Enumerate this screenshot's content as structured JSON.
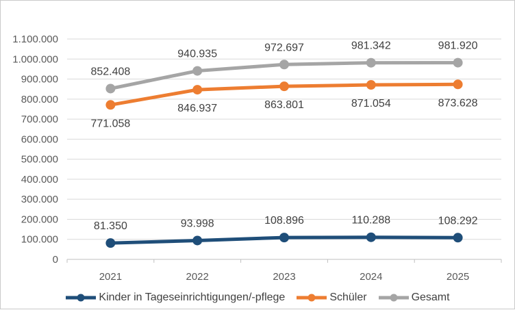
{
  "chart_data": {
    "type": "line",
    "categories": [
      "2021",
      "2022",
      "2023",
      "2024",
      "2025"
    ],
    "series": [
      {
        "name": "Kinder in Tageseinrichtigungen/-pflege",
        "color": "#1F4E79",
        "values": [
          81350,
          93998,
          108896,
          110288,
          108292
        ],
        "data_labels": [
          "81.350",
          "93.998",
          "108.896",
          "110.288",
          "108.292"
        ],
        "label_position": "above"
      },
      {
        "name": "Schüler",
        "color": "#ED7D31",
        "values": [
          771058,
          846937,
          863801,
          871054,
          873628
        ],
        "data_labels": [
          "771.058",
          "846.937",
          "863.801",
          "871.054",
          "873.628"
        ],
        "label_position": "below"
      },
      {
        "name": "Gesamt",
        "color": "#A5A5A5",
        "values": [
          852408,
          940935,
          972697,
          981342,
          981920
        ],
        "data_labels": [
          "852.408",
          "940.935",
          "972.697",
          "981.342",
          "981.920"
        ],
        "label_position": "above"
      }
    ],
    "ylim": [
      0,
      1100000
    ],
    "y_tick_labels": [
      "0",
      "100.000",
      "200.000",
      "300.000",
      "400.000",
      "500.000",
      "600.000",
      "700.000",
      "800.000",
      "900.000",
      "1.000.000",
      "1.100.000"
    ],
    "grid": true,
    "legend_position": "bottom"
  },
  "colors": {
    "grid_line": "#D9D9D9",
    "axis_line": "#BFBFBF",
    "axis_text": "#595959",
    "data_label_text": "#404040",
    "legend_text": "#404040",
    "frame_border": "#C9C9C9",
    "background": "#FFFFFF"
  }
}
